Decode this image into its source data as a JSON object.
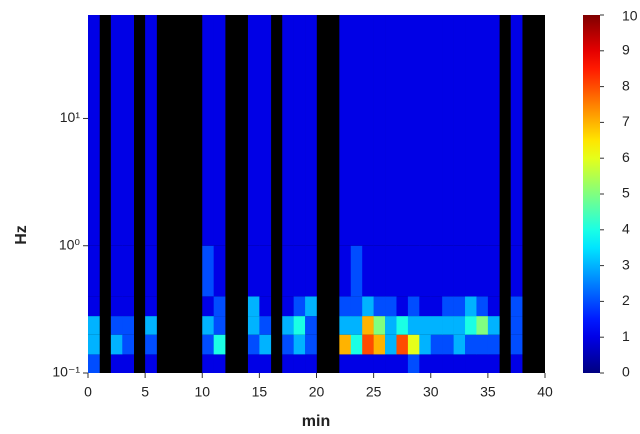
{
  "chart_data": {
    "type": "heatmap",
    "xlabel": "min",
    "ylabel": "Hz",
    "xlim": [
      0,
      40
    ],
    "xticks": [
      0,
      5,
      10,
      15,
      20,
      25,
      30,
      35,
      40
    ],
    "ylim": [
      0.1,
      65
    ],
    "log_y": true,
    "yticks": [
      {
        "value": 0.1,
        "label": "10⁻¹"
      },
      {
        "value": 1,
        "label": "10⁰"
      },
      {
        "value": 10,
        "label": "10¹"
      }
    ],
    "xbins": [
      0,
      1,
      2,
      3,
      4,
      5,
      6,
      7,
      8,
      9,
      10,
      11,
      12,
      13,
      14,
      15,
      16,
      17,
      18,
      19,
      20,
      21,
      22,
      23,
      24,
      25,
      26,
      27,
      28,
      29,
      30,
      31,
      32,
      33,
      34,
      35,
      36,
      37,
      38,
      39,
      40
    ],
    "ybins": [
      0.1,
      0.14,
      0.2,
      0.28,
      0.4,
      1,
      65
    ],
    "z": [
      [
        2,
        null,
        1,
        1,
        null,
        1,
        null,
        null,
        null,
        null,
        1,
        1,
        null,
        null,
        1,
        1,
        null,
        1,
        1,
        1,
        null,
        null,
        1,
        1,
        1,
        1,
        1,
        1,
        2,
        1,
        1,
        1,
        1,
        1,
        1,
        1,
        null,
        1,
        null,
        null
      ],
      [
        3,
        null,
        3,
        2,
        null,
        2,
        null,
        null,
        null,
        null,
        2,
        4,
        null,
        null,
        2,
        3,
        null,
        2,
        3,
        2,
        null,
        null,
        7,
        4,
        8,
        7,
        3,
        8,
        6,
        3,
        2,
        2,
        3,
        2,
        2,
        2,
        null,
        2,
        null,
        null
      ],
      [
        3,
        null,
        2,
        2,
        null,
        3,
        null,
        null,
        null,
        null,
        3,
        2,
        null,
        null,
        3,
        2,
        null,
        3,
        4,
        2,
        null,
        null,
        3,
        3,
        7,
        5,
        3,
        4,
        3,
        3,
        3,
        3,
        3,
        4,
        5,
        3,
        null,
        2,
        null,
        null
      ],
      [
        1,
        null,
        1,
        1,
        null,
        1,
        null,
        null,
        null,
        null,
        1,
        2,
        null,
        null,
        3,
        1,
        null,
        1,
        2,
        3,
        null,
        null,
        2,
        2,
        3,
        2,
        2,
        1,
        2,
        1,
        1,
        2,
        2,
        3,
        2,
        1,
        null,
        2,
        null,
        null
      ],
      [
        1,
        null,
        1,
        1,
        null,
        1,
        null,
        null,
        null,
        null,
        2,
        1,
        null,
        null,
        1,
        1,
        null,
        1,
        1,
        1,
        null,
        null,
        1,
        2,
        1,
        1,
        1,
        1,
        1,
        1,
        1,
        1,
        1,
        1,
        1,
        1,
        null,
        1,
        null,
        null
      ],
      [
        1,
        null,
        1,
        1,
        null,
        1,
        null,
        null,
        null,
        null,
        1,
        1,
        null,
        null,
        1,
        1,
        null,
        1,
        1,
        1,
        null,
        null,
        1,
        1,
        1,
        1,
        1,
        1,
        1,
        1,
        1,
        1,
        1,
        1,
        1,
        1,
        null,
        1,
        null,
        null
      ]
    ],
    "colormap": "jet",
    "clim": [
      0,
      10
    ],
    "cticks": [
      0,
      1,
      2,
      3,
      4,
      5,
      6,
      7,
      8,
      9,
      10
    ]
  }
}
